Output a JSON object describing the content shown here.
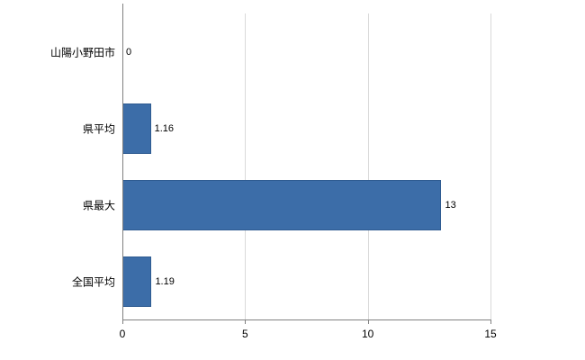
{
  "chart_data": {
    "type": "bar",
    "orientation": "horizontal",
    "title": "",
    "xlabel": "",
    "ylabel": "",
    "categories": [
      "山陽小野田市",
      "県平均",
      "県最大",
      "全国平均"
    ],
    "values": [
      0,
      1.16,
      13,
      1.19
    ],
    "value_labels": [
      "0",
      "1.16",
      "13",
      "1.19"
    ],
    "xlim": [
      0,
      15
    ],
    "xticks": [
      0,
      5,
      10,
      15
    ],
    "grid": true,
    "legend": false,
    "colors": {
      "bar_fill": "#3c6da8",
      "bar_border": "#2e5b91",
      "gridline": "#d9d9d9",
      "axis": "#808080",
      "text": "#000000",
      "background": "#ffffff"
    }
  }
}
